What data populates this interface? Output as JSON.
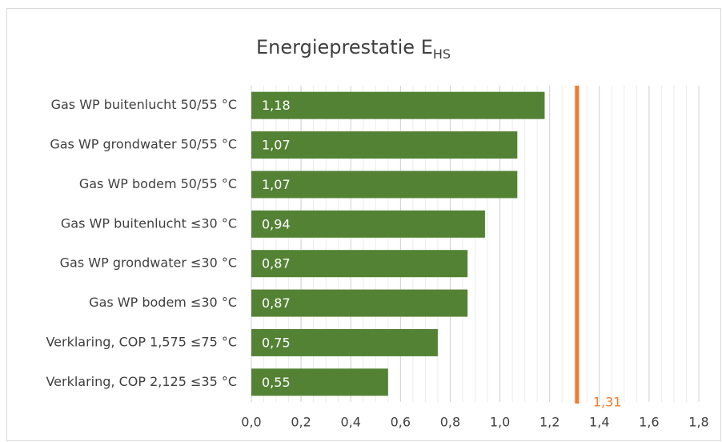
{
  "chart_data": {
    "type": "barh",
    "title": "Energieprestatie E",
    "title_subscript": "HS",
    "categories": [
      "Gas WP buitenlucht 50/55 °C",
      "Gas WP grondwater 50/55 °C",
      "Gas WP bodem 50/55 °C",
      "Gas WP buitenlucht ≤30 °C",
      "Gas WP grondwater ≤30 °C",
      "Gas WP bodem ≤30 °C",
      "Verklaring, COP 1,575 ≤75 °C",
      "Verklaring, COP 2,125 ≤35 °C"
    ],
    "values": [
      1.18,
      1.07,
      1.07,
      0.94,
      0.87,
      0.87,
      0.75,
      0.55
    ],
    "value_labels": [
      "1,18",
      "1,07",
      "1,07",
      "0,94",
      "0,87",
      "0,87",
      "0,75",
      "0,55"
    ],
    "color": "#548235",
    "xlim": [
      0,
      1.8
    ],
    "xticks": [
      {
        "value": 0,
        "label": "0,0"
      },
      {
        "value": 0.2,
        "label": "0,2"
      },
      {
        "value": 0.4,
        "label": "0,4"
      },
      {
        "value": 0.6,
        "label": "0,6"
      },
      {
        "value": 0.8,
        "label": "0,8"
      },
      {
        "value": 1.0,
        "label": "1,0"
      },
      {
        "value": 1.2,
        "label": "1,2"
      },
      {
        "value": 1.4,
        "label": "1,4"
      },
      {
        "value": 1.6,
        "label": "1,6"
      },
      {
        "value": 1.8,
        "label": "1,8"
      }
    ],
    "grid": true,
    "minor_grid": true,
    "reference": {
      "value": 1.31,
      "label": "1,31",
      "color": "#ed7d31"
    }
  }
}
